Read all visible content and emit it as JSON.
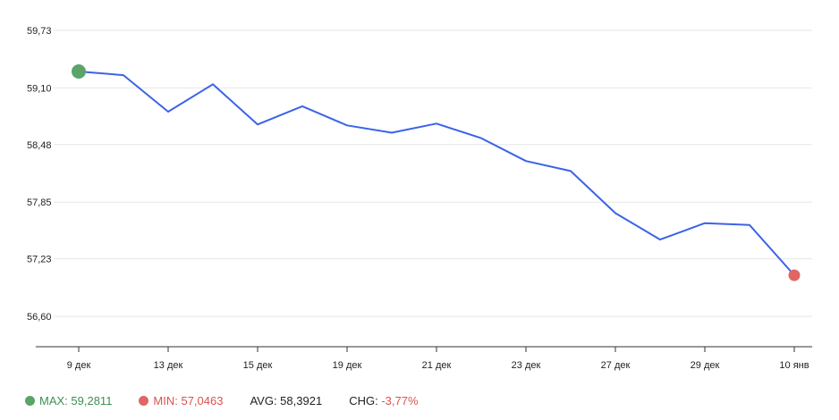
{
  "chart_data": {
    "type": "line",
    "title": "",
    "xlabel": "",
    "ylabel": "",
    "ylim": [
      56.6,
      59.73
    ],
    "y_ticks": [
      "59,73",
      "59,10",
      "58,48",
      "57,85",
      "57,23",
      "56,60"
    ],
    "y_tick_values": [
      59.73,
      59.1,
      58.48,
      57.85,
      57.23,
      56.6
    ],
    "x_tick_labels": [
      "9 дек",
      "13 дек",
      "15 дек",
      "19 дек",
      "21 дек",
      "23 дек",
      "27 дек",
      "29 дек",
      "10 янв"
    ],
    "x_tick_index": [
      0,
      2,
      4,
      6,
      8,
      10,
      12,
      14,
      16
    ],
    "grid": true,
    "series": [
      {
        "color": "#3b63e8",
        "values": [
          59.28,
          59.24,
          58.84,
          59.14,
          58.7,
          58.9,
          58.69,
          58.61,
          58.71,
          58.55,
          58.3,
          58.19,
          57.73,
          57.44,
          57.62,
          57.6,
          57.05
        ]
      }
    ],
    "markers": {
      "max": {
        "index": 0,
        "color": "#5aa469"
      },
      "min": {
        "index": 16,
        "color": "#e06666"
      }
    }
  },
  "stats": {
    "max_label": "MAX: 59,2811",
    "min_label": "MIN: 57,0463",
    "avg_label": "AVG: 58,3921",
    "chg_label": "CHG:",
    "chg_value": "-3,77%"
  }
}
